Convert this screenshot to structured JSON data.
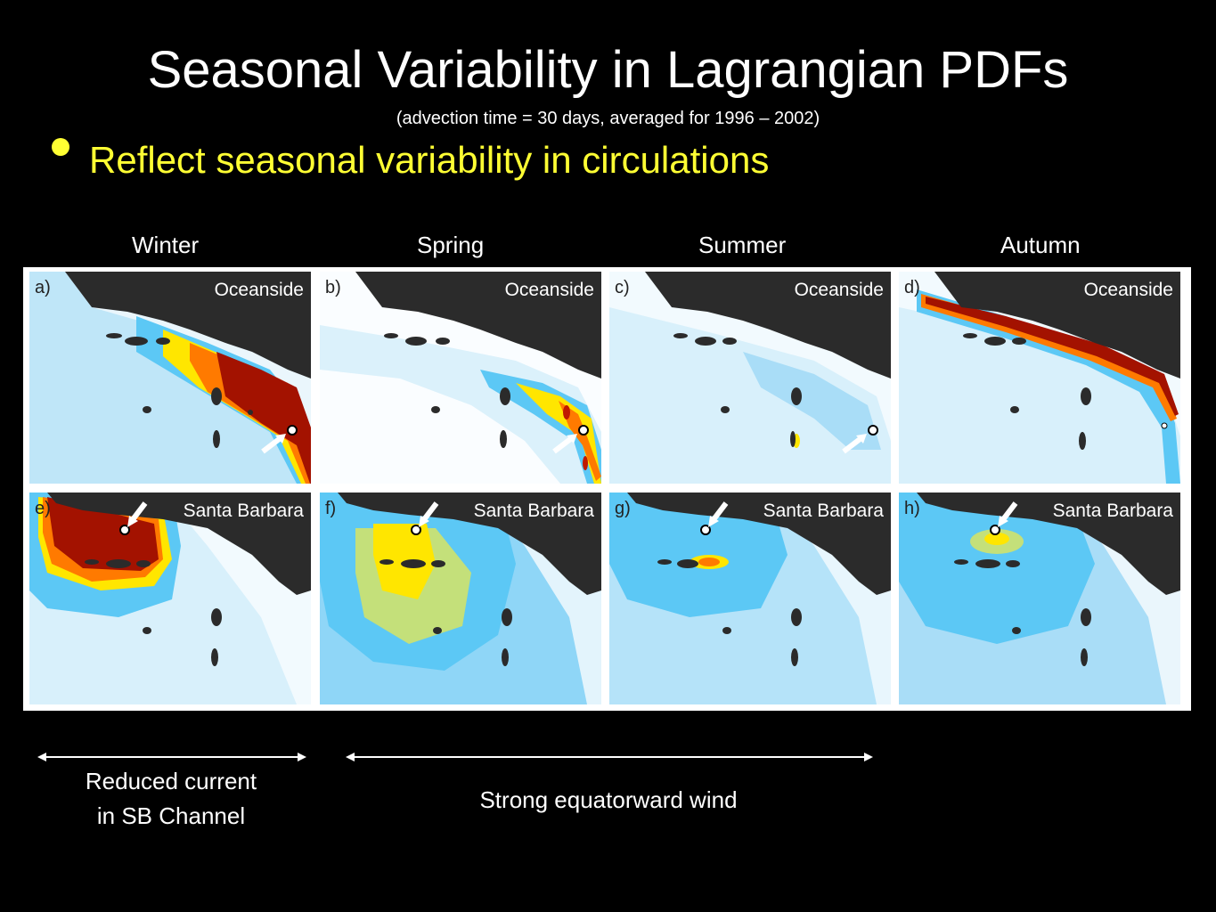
{
  "slide": {
    "title": "Seasonal Variability in Lagrangian PDFs",
    "subtitle": "(advection time = 30 days, averaged for 1996 – 2002)",
    "bullet": "Reflect seasonal variability in circulations",
    "bullet_color": "#ffff33"
  },
  "seasons": [
    "Winter",
    "Spring",
    "Summer",
    "Autumn"
  ],
  "panels": [
    {
      "label": "a)",
      "location": "Oceanside"
    },
    {
      "label": "b)",
      "location": "Oceanside"
    },
    {
      "label": "c)",
      "location": "Oceanside"
    },
    {
      "label": "d)",
      "location": "Oceanside"
    },
    {
      "label": "e)",
      "location": "Santa Barbara"
    },
    {
      "label": "f)",
      "location": "Santa Barbara"
    },
    {
      "label": "g)",
      "location": "Santa Barbara"
    },
    {
      "label": "h)",
      "location": "Santa Barbara"
    }
  ],
  "annotations": {
    "reduced_line1": "Reduced current",
    "reduced_line2": "in SB Channel",
    "strong_wind": "Strong equatorward wind"
  },
  "colors": {
    "background": "#000000",
    "land": "#2b2b2b",
    "low_probability": "#4fc3f7",
    "high_probability": "#a31200"
  }
}
